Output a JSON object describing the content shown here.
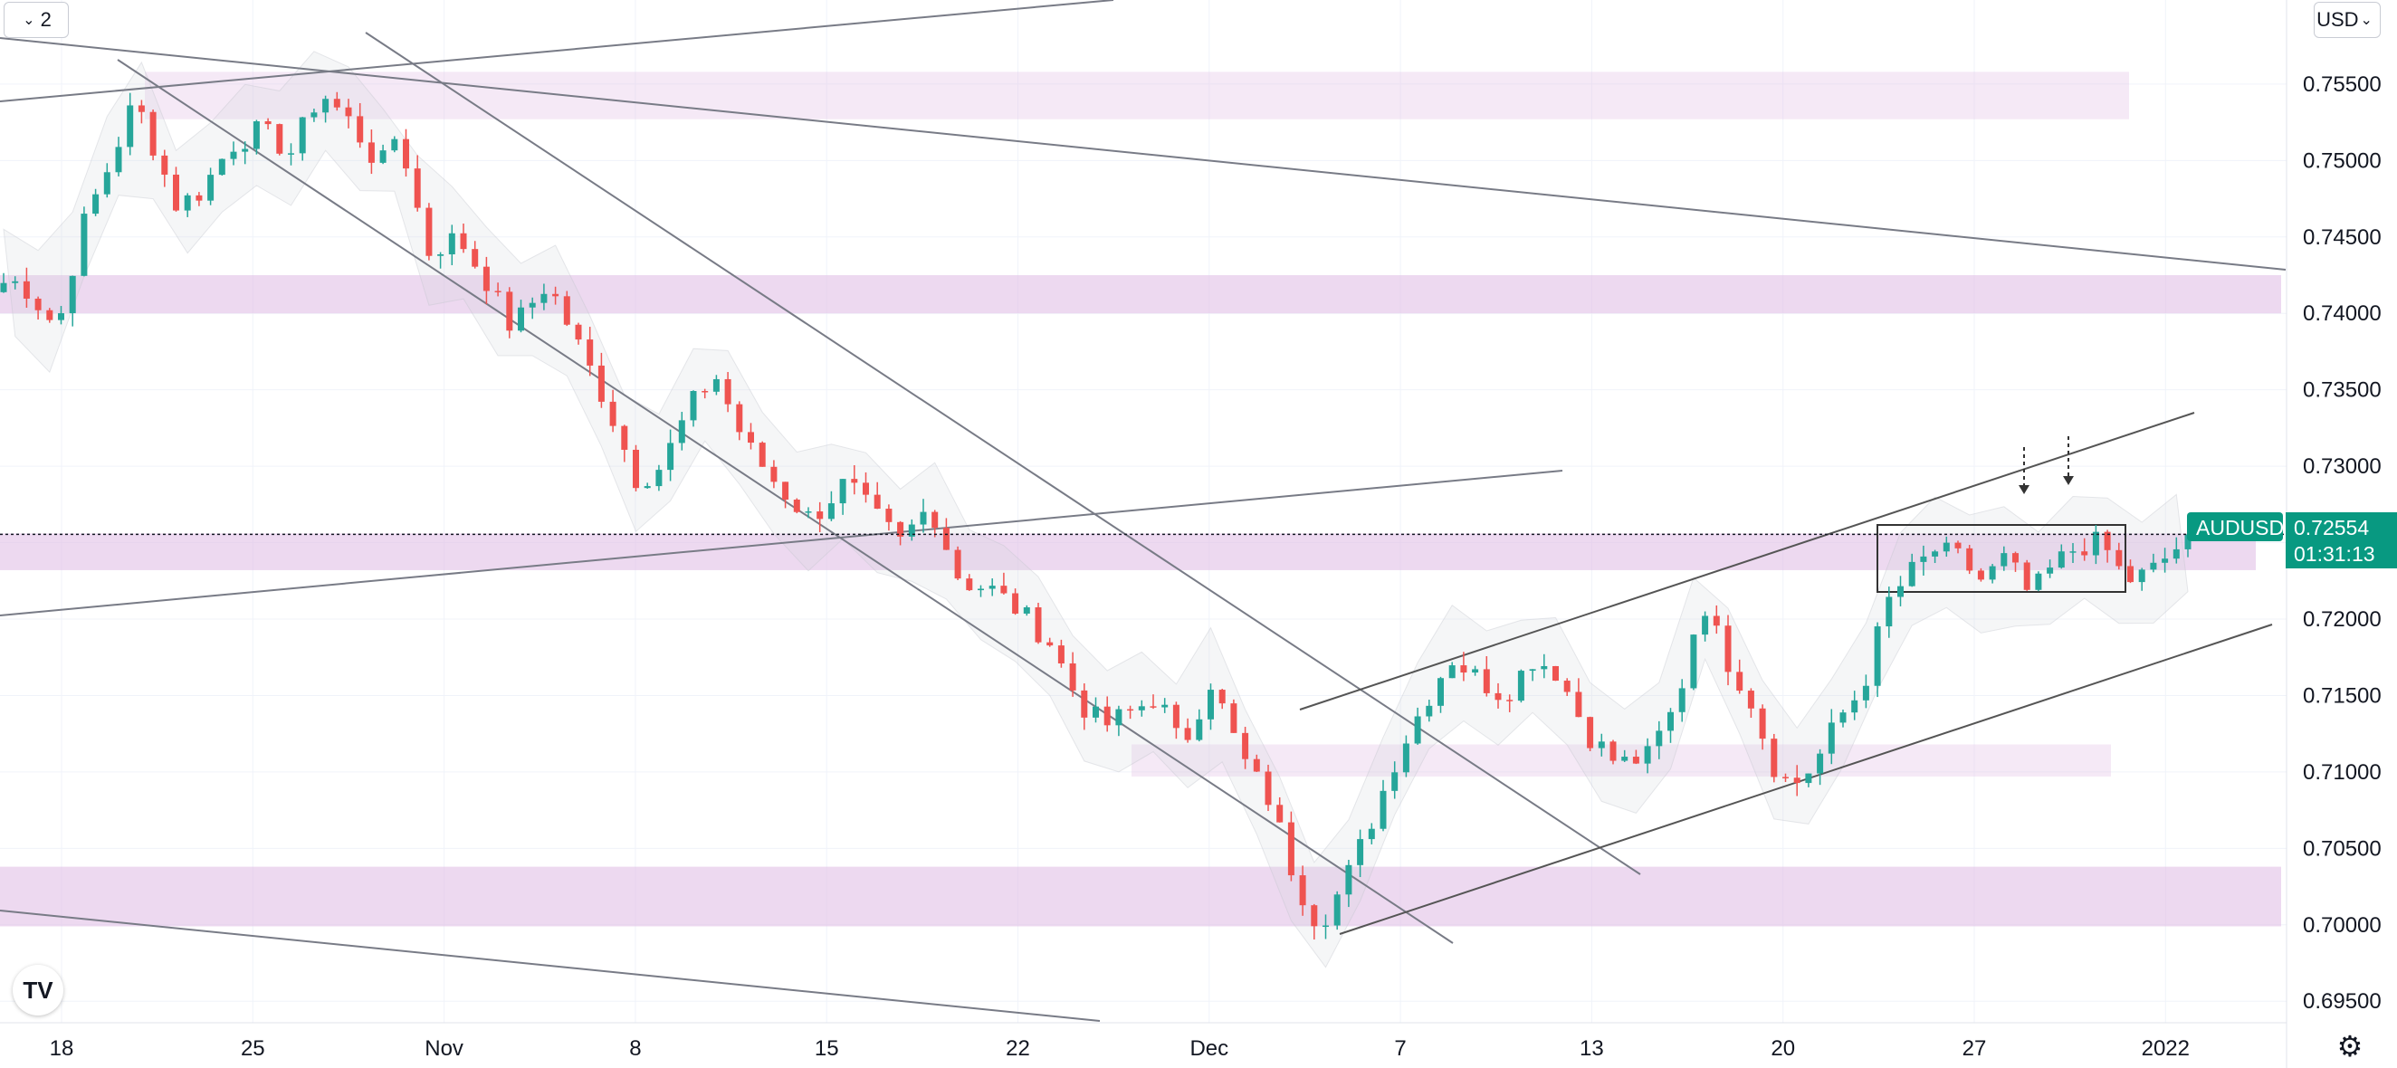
{
  "interval": {
    "value": "2"
  },
  "currency": {
    "label": "USD"
  },
  "symbol_tag": {
    "symbol": "AUDUSD",
    "price": "0.72554",
    "countdown": "01:31:13"
  },
  "colors": {
    "up": "#26a69a",
    "down": "#ef5350",
    "zone": "#e1bfe6",
    "tag": "#089981",
    "line": "#787b86"
  },
  "chart_data": {
    "type": "candlestick",
    "symbol": "AUDUSD",
    "timeframe": "2H",
    "ylim": [
      0.693,
      0.7605
    ],
    "y_ticks": [
      "0.69500",
      "0.70000",
      "0.70500",
      "0.71000",
      "0.71500",
      "0.72000",
      "0.72500",
      "0.73000",
      "0.73500",
      "0.74000",
      "0.74500",
      "0.75000",
      "0.75500"
    ],
    "x_ticks": [
      "18",
      "25",
      "Nov",
      "8",
      "15",
      "22",
      "Dec",
      "7",
      "13",
      "20",
      "27",
      "2022"
    ],
    "last_price": 0.72554,
    "horizontal_zones": [
      {
        "from": 0.7527,
        "to": 0.7558,
        "opacity": "light"
      },
      {
        "from": 0.74,
        "to": 0.7425,
        "opacity": "medium"
      },
      {
        "from": 0.7232,
        "to": 0.7256,
        "opacity": "medium"
      },
      {
        "from": 0.7097,
        "to": 0.7118,
        "opacity": "light"
      },
      {
        "from": 0.6999,
        "to": 0.7038,
        "opacity": "medium"
      }
    ],
    "series": [
      {
        "name": "price path",
        "values": [
          [
            0.0,
            0.742
          ],
          [
            0.3,
            0.742
          ],
          [
            0.9,
            0.739
          ],
          [
            1.3,
            0.7455
          ],
          [
            1.8,
            0.75
          ],
          [
            2.2,
            0.754
          ],
          [
            2.9,
            0.747
          ],
          [
            3.3,
            0.748
          ],
          [
            3.8,
            0.751
          ],
          [
            4.3,
            0.752
          ],
          [
            4.8,
            0.7505
          ],
          [
            5.3,
            0.7545
          ],
          [
            5.8,
            0.7525
          ],
          [
            6.3,
            0.7495
          ],
          [
            6.6,
            0.752
          ],
          [
            7.1,
            0.744
          ],
          [
            7.6,
            0.745
          ],
          [
            8.1,
            0.742
          ],
          [
            8.5,
            0.739
          ],
          [
            9.1,
            0.742
          ],
          [
            9.6,
            0.738
          ],
          [
            10.1,
            0.734
          ],
          [
            10.6,
            0.729
          ],
          [
            11.0,
            0.73
          ],
          [
            11.5,
            0.734
          ],
          [
            11.9,
            0.736
          ],
          [
            12.4,
            0.7315
          ],
          [
            13.0,
            0.7285
          ],
          [
            13.5,
            0.7265
          ],
          [
            14.1,
            0.729
          ],
          [
            14.5,
            0.727
          ],
          [
            15.0,
            0.725
          ],
          [
            15.5,
            0.7275
          ],
          [
            16.0,
            0.7225
          ],
          [
            16.5,
            0.722
          ],
          [
            17.0,
            0.7205
          ],
          [
            17.5,
            0.7185
          ],
          [
            18.0,
            0.7145
          ],
          [
            18.4,
            0.713
          ],
          [
            18.9,
            0.714
          ],
          [
            19.3,
            0.715
          ],
          [
            19.7,
            0.7115
          ],
          [
            20.2,
            0.716
          ],
          [
            20.7,
            0.711
          ],
          [
            21.2,
            0.708
          ],
          [
            21.6,
            0.703
          ],
          [
            22.0,
            0.7
          ],
          [
            22.4,
            0.7025
          ],
          [
            22.8,
            0.706
          ],
          [
            23.3,
            0.711
          ],
          [
            23.7,
            0.714
          ],
          [
            24.2,
            0.7175
          ],
          [
            24.7,
            0.716
          ],
          [
            25.1,
            0.715
          ],
          [
            25.6,
            0.7175
          ],
          [
            26.0,
            0.7165
          ],
          [
            26.5,
            0.7125
          ],
          [
            27.0,
            0.7105
          ],
          [
            27.5,
            0.711
          ],
          [
            28.0,
            0.7145
          ],
          [
            28.4,
            0.7215
          ],
          [
            28.8,
            0.7175
          ],
          [
            29.2,
            0.715
          ],
          [
            29.6,
            0.7105
          ],
          [
            29.9,
            0.709
          ],
          [
            30.3,
            0.7105
          ],
          [
            30.7,
            0.7135
          ],
          [
            31.1,
            0.7155
          ],
          [
            31.5,
            0.721
          ],
          [
            31.9,
            0.723
          ],
          [
            32.3,
            0.7245
          ],
          [
            32.7,
            0.724
          ],
          [
            33.1,
            0.7225
          ],
          [
            33.5,
            0.724
          ],
          [
            33.9,
            0.7215
          ],
          [
            34.3,
            0.7235
          ],
          [
            34.7,
            0.7248
          ],
          [
            35.1,
            0.725
          ],
          [
            35.5,
            0.7225
          ],
          [
            35.9,
            0.723
          ],
          [
            36.3,
            0.7245
          ],
          [
            36.6,
            0.7255
          ]
        ]
      }
    ],
    "annotations": [
      "trend lines",
      "ascending channel",
      "descending channel",
      "consolidation box",
      "two dashed arrows pointing down"
    ]
  }
}
